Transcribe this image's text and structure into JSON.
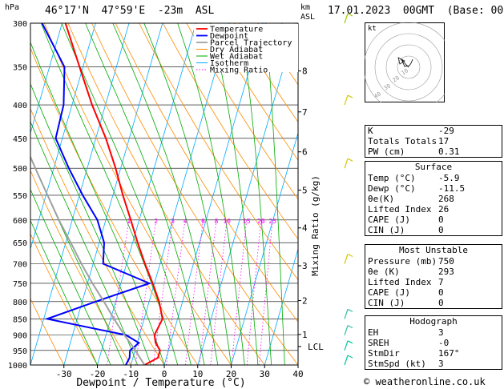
{
  "header": {
    "location": "46°17'N  47°59'E  -23m  ASL",
    "datetime": "17.01.2023  00GMT  (Base: 00)",
    "unit_pressure": "hPa",
    "unit_km": "km",
    "unit_asl": "ASL"
  },
  "footer": "© weatheronline.co.uk",
  "colors": {
    "temperature": "#ff0000",
    "dewpoint": "#0000ff",
    "parcel": "#a0a0a0",
    "dry_adiabat": "#ff8c00",
    "wet_adiabat": "#00aa00",
    "isotherm": "#00aaff",
    "mixing_ratio": "#ff00ff"
  },
  "chart_data": {
    "type": "line",
    "xlabel": "Dewpoint / Temperature (°C)",
    "ylabel": "",
    "right_axis_label": "Mixing Ratio (g/kg)",
    "x_ticks": [
      -30,
      -20,
      -10,
      0,
      10,
      20,
      30,
      40
    ],
    "xlim": [
      -40,
      40
    ],
    "ylim": [
      1000,
      300
    ],
    "pressure_ticks": [
      300,
      350,
      400,
      450,
      500,
      550,
      600,
      650,
      700,
      750,
      800,
      850,
      900,
      950,
      1000
    ],
    "km_ticks": [
      {
        "km": "8",
        "p": 355
      },
      {
        "km": "7",
        "p": 410
      },
      {
        "km": "6",
        "p": 472
      },
      {
        "km": "5",
        "p": 540
      },
      {
        "km": "4",
        "p": 617
      },
      {
        "km": "3",
        "p": 705
      },
      {
        "km": "2",
        "p": 797
      },
      {
        "km": "1",
        "p": 898
      }
    ],
    "lcl": {
      "label": "LCL",
      "p": 937
    },
    "mixing_ratio_labels": [
      "1",
      "2",
      "3",
      "4",
      "6",
      "8",
      "10",
      "15",
      "20",
      "25"
    ],
    "mixing_ratio_values": [
      1,
      2,
      3,
      4,
      6,
      8,
      10,
      15,
      20,
      25
    ],
    "legend": [
      "Temperature",
      "Dewpoint",
      "Parcel Trajectory",
      "Dry Adiabat",
      "Wet Adiabat",
      "Isotherm",
      "Mixing Ratio"
    ],
    "legend_position": "top-right",
    "series": [
      {
        "name": "Temperature",
        "p": [
          1000,
          975,
          950,
          925,
          900,
          850,
          800,
          750,
          700,
          650,
          600,
          550,
          500,
          450,
          400,
          350,
          300
        ],
        "t": [
          -5.9,
          -2.5,
          -2.5,
          -4.5,
          -5.5,
          -4.5,
          -7,
          -10.5,
          -14.5,
          -18.5,
          -22.5,
          -27,
          -31.5,
          -37,
          -44,
          -51,
          -59
        ]
      },
      {
        "name": "Dewpoint",
        "p": [
          1000,
          975,
          950,
          925,
          900,
          850,
          800,
          750,
          700,
          650,
          600,
          550,
          500,
          450,
          400,
          350,
          300
        ],
        "t": [
          -11.5,
          -11,
          -11.5,
          -9.5,
          -14,
          -39,
          -26,
          -11.5,
          -27,
          -28.5,
          -32.5,
          -39,
          -45.5,
          -52,
          -52.5,
          -55.5,
          -66
        ]
      },
      {
        "name": "Parcel Trajectory",
        "p": [
          1000,
          937,
          900,
          850,
          800,
          750,
          700,
          650,
          600,
          550,
          500,
          450,
          400
        ],
        "t": [
          -5.9,
          -11,
          -14.5,
          -19,
          -23.5,
          -28.5,
          -33.5,
          -38.5,
          -44,
          -49.5,
          -55.5,
          -62,
          -69
        ]
      }
    ],
    "hodograph": {
      "rings": [
        "10",
        "20",
        "30",
        "40"
      ],
      "unit": "kt"
    }
  },
  "indices": {
    "top": [
      {
        "label": "K",
        "value": "-29"
      },
      {
        "label": "Totals Totals",
        "value": "17"
      },
      {
        "label": "PW (cm)",
        "value": "0.31"
      }
    ],
    "surface": {
      "title": "Surface",
      "rows": [
        {
          "label": "Temp (°C)",
          "value": "-5.9"
        },
        {
          "label": "Dewp (°C)",
          "value": "-11.5"
        },
        {
          "label": "θe(K)",
          "value": "268"
        },
        {
          "label": "Lifted Index",
          "value": "26"
        },
        {
          "label": "CAPE (J)",
          "value": "0"
        },
        {
          "label": "CIN (J)",
          "value": "0"
        }
      ]
    },
    "unstable": {
      "title": "Most Unstable",
      "rows": [
        {
          "label": "Pressure (mb)",
          "value": "750"
        },
        {
          "label": "θe (K)",
          "value": "293"
        },
        {
          "label": "Lifted Index",
          "value": "7"
        },
        {
          "label": "CAPE (J)",
          "value": "0"
        },
        {
          "label": "CIN (J)",
          "value": "0"
        }
      ]
    },
    "hodograph": {
      "title": "Hodograph",
      "rows": [
        {
          "label": "EH",
          "value": "3"
        },
        {
          "label": "SREH",
          "value": "-0"
        },
        {
          "label": "StmDir",
          "value": "167°"
        },
        {
          "label": "StmSpd (kt)",
          "value": "3"
        }
      ]
    }
  }
}
